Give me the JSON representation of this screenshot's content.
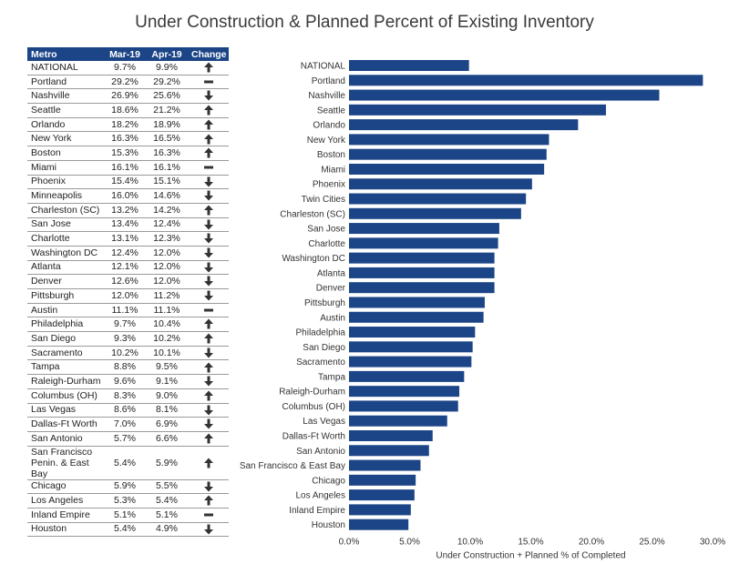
{
  "title": "Under Construction & Planned Percent of Existing Inventory",
  "table": {
    "headers": [
      "Metro",
      "Mar-19",
      "Apr-19",
      "Change"
    ],
    "rows": [
      {
        "metro": "NATIONAL",
        "mar": "9.7%",
        "apr": "9.9%",
        "change": "up"
      },
      {
        "metro": "Portland",
        "mar": "29.2%",
        "apr": "29.2%",
        "change": "flat"
      },
      {
        "metro": "Nashville",
        "mar": "26.9%",
        "apr": "25.6%",
        "change": "down"
      },
      {
        "metro": "Seattle",
        "mar": "18.6%",
        "apr": "21.2%",
        "change": "up"
      },
      {
        "metro": "Orlando",
        "mar": "18.2%",
        "apr": "18.9%",
        "change": "up"
      },
      {
        "metro": "New York",
        "mar": "16.3%",
        "apr": "16.5%",
        "change": "up"
      },
      {
        "metro": "Boston",
        "mar": "15.3%",
        "apr": "16.3%",
        "change": "up"
      },
      {
        "metro": "Miami",
        "mar": "16.1%",
        "apr": "16.1%",
        "change": "flat"
      },
      {
        "metro": "Phoenix",
        "mar": "15.4%",
        "apr": "15.1%",
        "change": "down"
      },
      {
        "metro": "Minneapolis",
        "mar": "16.0%",
        "apr": "14.6%",
        "change": "down"
      },
      {
        "metro": "Charleston (SC)",
        "mar": "13.2%",
        "apr": "14.2%",
        "change": "up"
      },
      {
        "metro": "San Jose",
        "mar": "13.4%",
        "apr": "12.4%",
        "change": "down"
      },
      {
        "metro": "Charlotte",
        "mar": "13.1%",
        "apr": "12.3%",
        "change": "down"
      },
      {
        "metro": "Washington DC",
        "mar": "12.4%",
        "apr": "12.0%",
        "change": "down"
      },
      {
        "metro": "Atlanta",
        "mar": "12.1%",
        "apr": "12.0%",
        "change": "down"
      },
      {
        "metro": "Denver",
        "mar": "12.6%",
        "apr": "12.0%",
        "change": "down"
      },
      {
        "metro": "Pittsburgh",
        "mar": "12.0%",
        "apr": "11.2%",
        "change": "down"
      },
      {
        "metro": "Austin",
        "mar": "11.1%",
        "apr": "11.1%",
        "change": "flat"
      },
      {
        "metro": "Philadelphia",
        "mar": "9.7%",
        "apr": "10.4%",
        "change": "up"
      },
      {
        "metro": "San Diego",
        "mar": "9.3%",
        "apr": "10.2%",
        "change": "up"
      },
      {
        "metro": "Sacramento",
        "mar": "10.2%",
        "apr": "10.1%",
        "change": "down"
      },
      {
        "metro": "Tampa",
        "mar": "8.8%",
        "apr": "9.5%",
        "change": "up"
      },
      {
        "metro": "Raleigh-Durham",
        "mar": "9.6%",
        "apr": "9.1%",
        "change": "down"
      },
      {
        "metro": "Columbus (OH)",
        "mar": "8.3%",
        "apr": "9.0%",
        "change": "up"
      },
      {
        "metro": "Las Vegas",
        "mar": "8.6%",
        "apr": "8.1%",
        "change": "down"
      },
      {
        "metro": "Dallas-Ft Worth",
        "mar": "7.0%",
        "apr": "6.9%",
        "change": "down"
      },
      {
        "metro": "San Antonio",
        "mar": "5.7%",
        "apr": "6.6%",
        "change": "up"
      },
      {
        "metro": "San Francisco Penin. & East Bay",
        "mar": "5.4%",
        "apr": "5.9%",
        "change": "up"
      },
      {
        "metro": "Chicago",
        "mar": "5.9%",
        "apr": "5.5%",
        "change": "down"
      },
      {
        "metro": "Los Angeles",
        "mar": "5.3%",
        "apr": "5.4%",
        "change": "up"
      },
      {
        "metro": "Inland Empire",
        "mar": "5.1%",
        "apr": "5.1%",
        "change": "flat"
      },
      {
        "metro": "Houston",
        "mar": "5.4%",
        "apr": "4.9%",
        "change": "down"
      }
    ]
  },
  "colors": {
    "bar": "#1c4587",
    "header_bg": "#1c4587",
    "icon": "#333333"
  },
  "chart_data": {
    "type": "bar",
    "orientation": "horizontal",
    "categories": [
      "NATIONAL",
      "Portland",
      "Nashville",
      "Seattle",
      "Orlando",
      "New York",
      "Boston",
      "Miami",
      "Phoenix",
      "Twin Cities",
      "Charleston (SC)",
      "San Jose",
      "Charlotte",
      "Washington DC",
      "Atlanta",
      "Denver",
      "Pittsburgh",
      "Austin",
      "Philadelphia",
      "San Diego",
      "Sacramento",
      "Tampa",
      "Raleigh-Durham",
      "Columbus (OH)",
      "Las Vegas",
      "Dallas-Ft Worth",
      "San Antonio",
      "San Francisco & East Bay",
      "Chicago",
      "Los Angeles",
      "Inland Empire",
      "Houston"
    ],
    "values": [
      9.9,
      29.2,
      25.6,
      21.2,
      18.9,
      16.5,
      16.3,
      16.1,
      15.1,
      14.6,
      14.2,
      12.4,
      12.3,
      12.0,
      12.0,
      12.0,
      11.2,
      11.1,
      10.4,
      10.2,
      10.1,
      9.5,
      9.1,
      9.0,
      8.1,
      6.9,
      6.6,
      5.9,
      5.5,
      5.4,
      5.1,
      4.9
    ],
    "xlabel": "Under Construction + Planned % of Completed",
    "ylabel": "",
    "xlim": [
      0,
      30
    ],
    "xticks": [
      "0.0%",
      "5.0%",
      "10.0%",
      "15.0%",
      "20.0%",
      "25.0%",
      "30.0%"
    ],
    "grid": false,
    "legend": "none"
  }
}
